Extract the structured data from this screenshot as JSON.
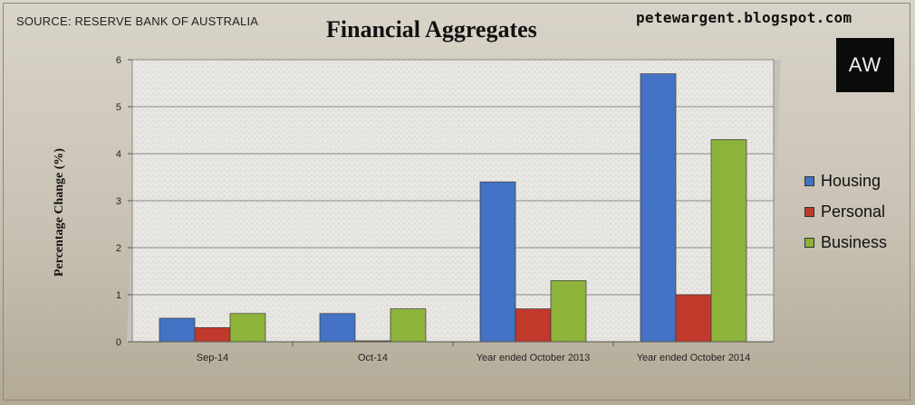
{
  "header": {
    "source": "SOURCE: RESERVE BANK OF AUSTRALIA",
    "blog": "petewargent.blogspot.com",
    "logo": "AW"
  },
  "chart_data": {
    "type": "bar",
    "title": "Financial Aggregates",
    "xlabel": "",
    "ylabel": "Percentage Change (%)",
    "ylim": [
      0,
      6
    ],
    "yticks": [
      0,
      1,
      2,
      3,
      4,
      5,
      6
    ],
    "grid": true,
    "legend_position": "right",
    "categories": [
      "Sep-14",
      "Oct-14",
      "Year ended October 2013",
      "Year ended October 2014"
    ],
    "series": [
      {
        "name": "Housing",
        "color": "#4472c4",
        "values": [
          0.5,
          0.6,
          3.4,
          5.7
        ]
      },
      {
        "name": "Personal",
        "color": "#c0392b",
        "values": [
          0.3,
          0.0,
          0.7,
          1.0
        ]
      },
      {
        "name": "Business",
        "color": "#8db33a",
        "values": [
          0.6,
          0.7,
          1.3,
          4.3
        ]
      }
    ]
  }
}
